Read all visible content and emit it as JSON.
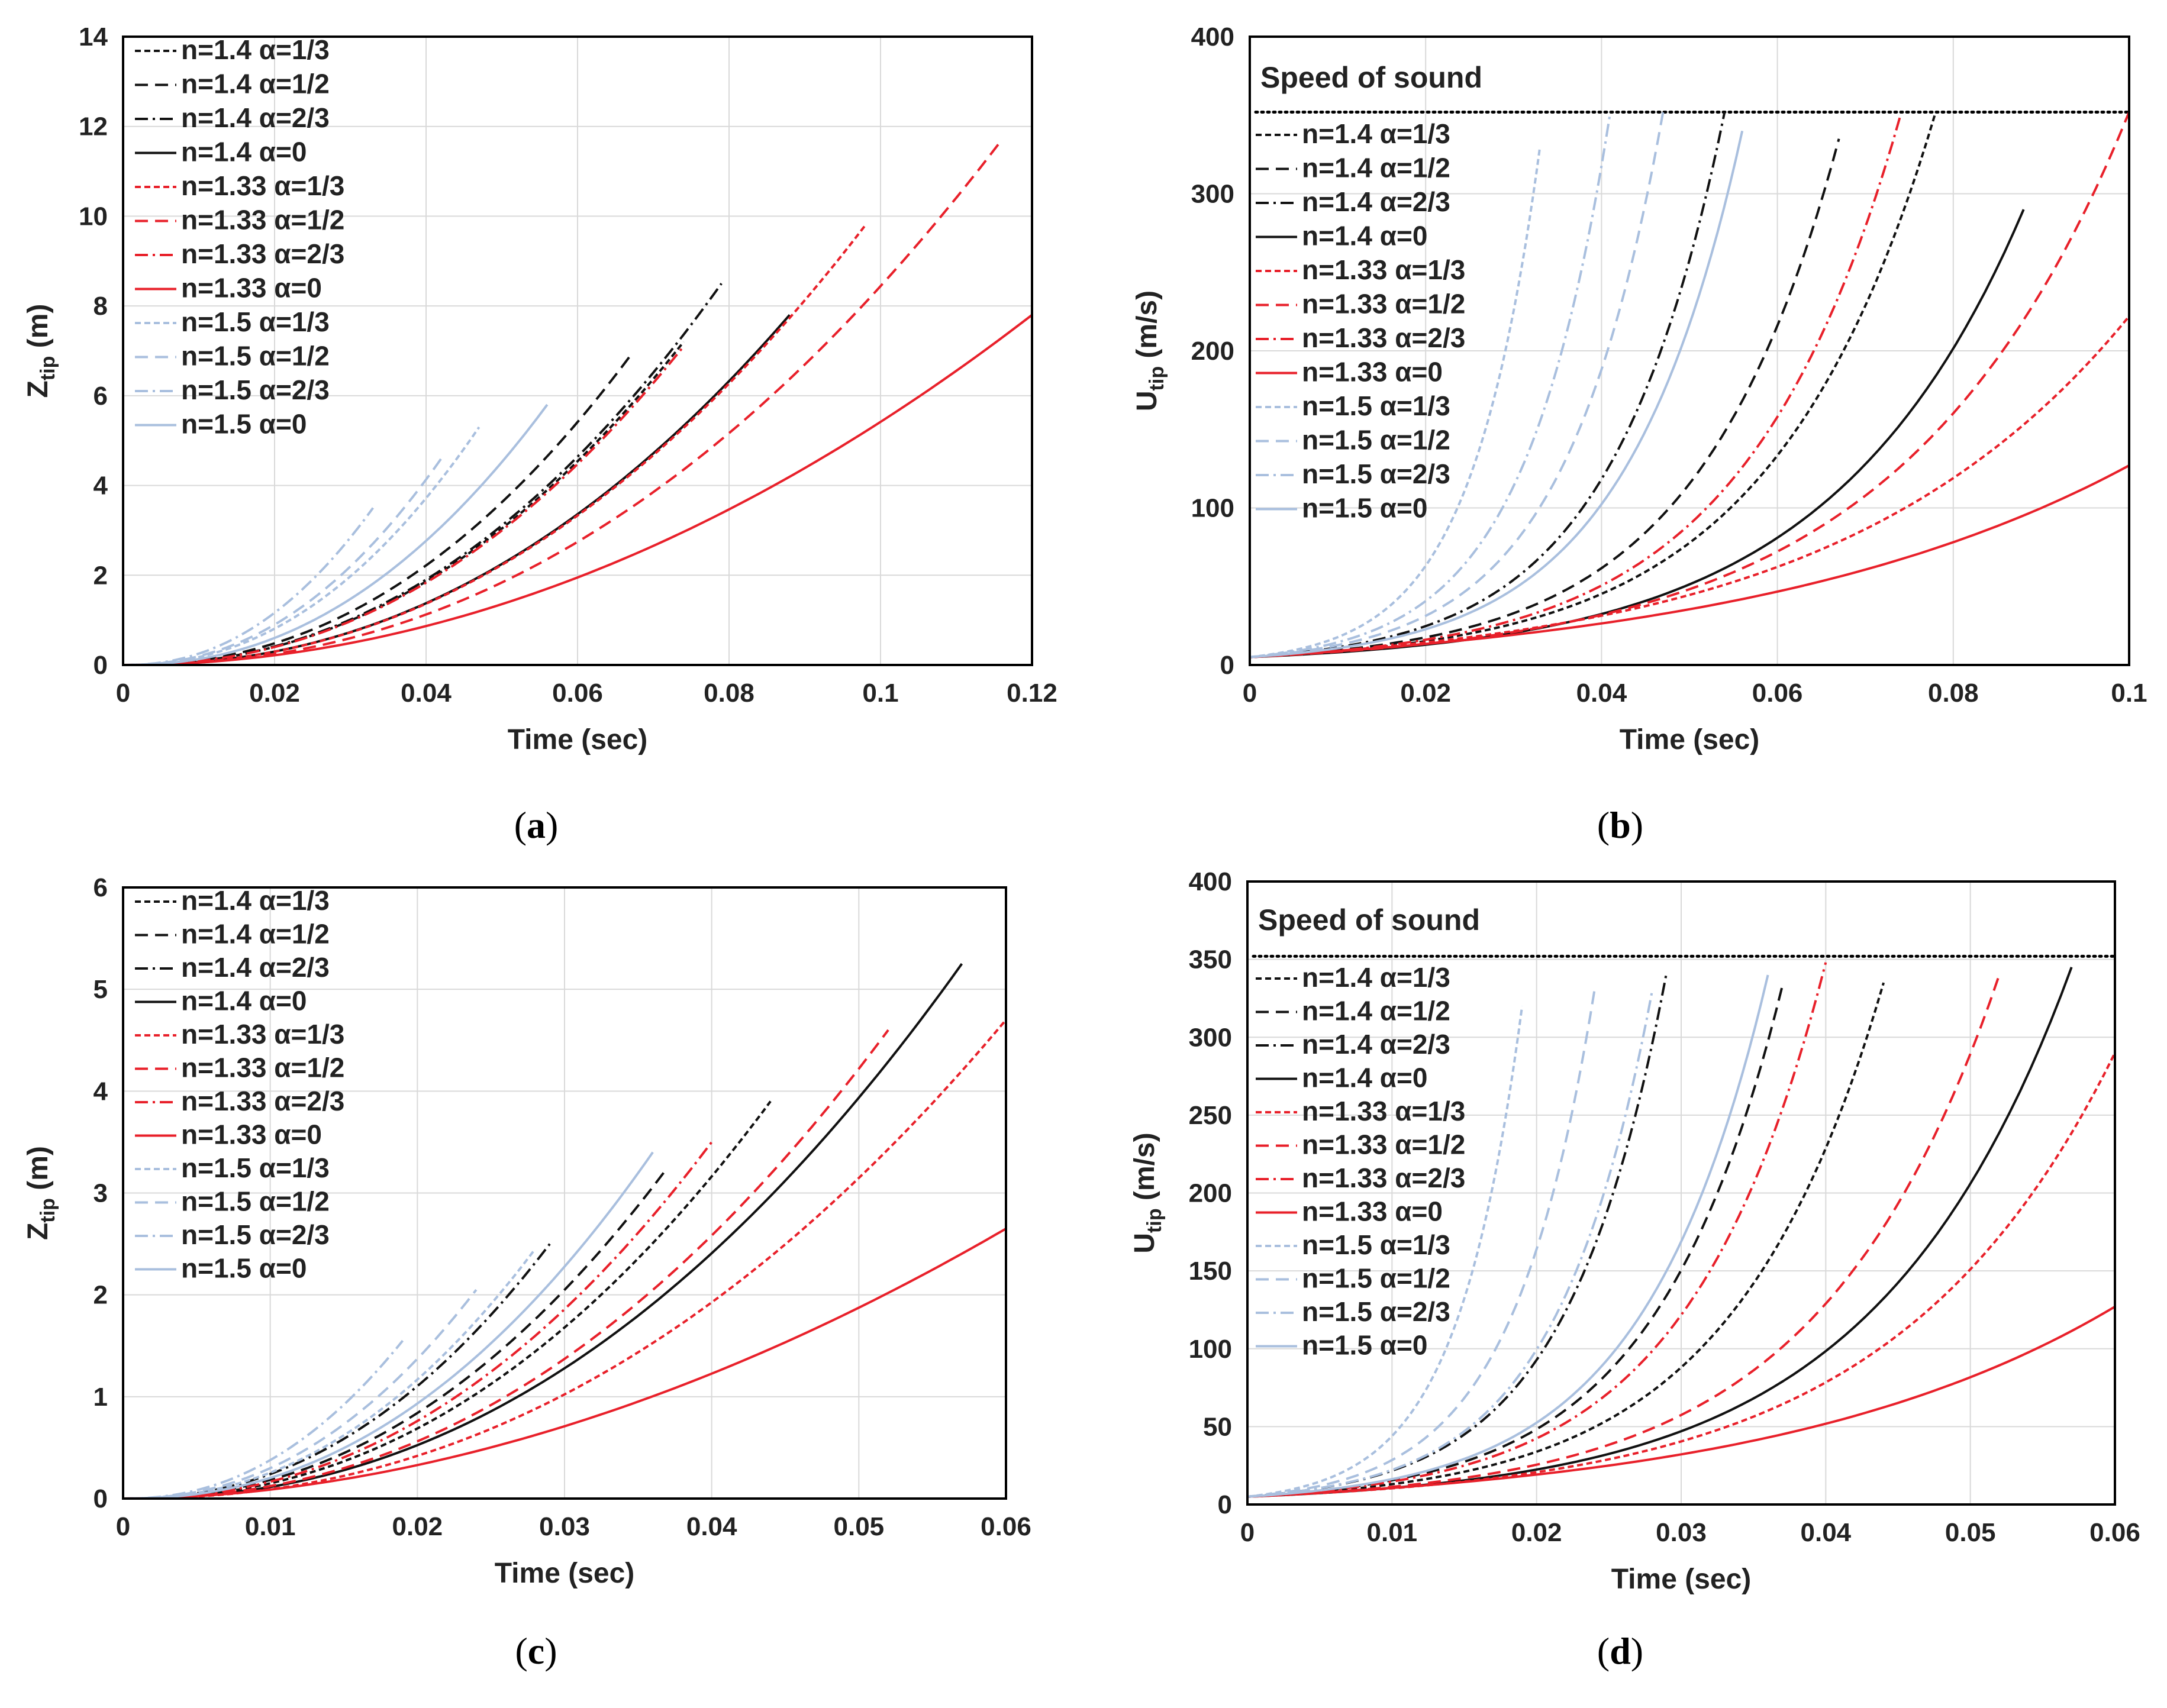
{
  "palette": {
    "black": "#111111",
    "red": "#e8202a",
    "blue": "#a9bfde",
    "grid": "#d9d9d9",
    "frame": "#000000"
  },
  "chart_data": [
    {
      "id": "a",
      "panel_label": {
        "open": "(",
        "letter": "a",
        "close": ")"
      },
      "type": "line",
      "xlabel": "Time (sec)",
      "ylabel": {
        "main": "Z",
        "sub": "tip",
        "unit": " (m)"
      },
      "xlim": [
        0,
        0.12
      ],
      "ylim": [
        0,
        14
      ],
      "xticks": [
        0,
        0.02,
        0.04,
        0.06,
        0.08,
        0.1,
        0.12
      ],
      "xtick_labels": [
        "0",
        "0.02",
        "0.04",
        "0.06",
        "0.08",
        "0.1",
        "0.12"
      ],
      "yticks": [
        0,
        2,
        4,
        6,
        8,
        10,
        12,
        14
      ],
      "ytick_labels": [
        "0",
        "2",
        "4",
        "6",
        "8",
        "10",
        "12",
        "14"
      ],
      "legend_placement": "top-left",
      "series": [
        {
          "name": "n=1.4 α=1/3",
          "color": "black",
          "dash": "short",
          "t_end": 0.074,
          "y_end": 7.2,
          "p": 2.2
        },
        {
          "name": "n=1.4 α=1/2",
          "color": "black",
          "dash": "long",
          "t_end": 0.067,
          "y_end": 6.9,
          "p": 2.2
        },
        {
          "name": "n=1.4 α=2/3",
          "color": "black",
          "dash": "dashdot",
          "t_end": 0.079,
          "y_end": 8.5,
          "p": 2.2
        },
        {
          "name": "n=1.4 α=0",
          "color": "black",
          "dash": "solid",
          "t_end": 0.088,
          "y_end": 7.8,
          "p": 2.2
        },
        {
          "name": "n=1.33 α=1/3",
          "color": "red",
          "dash": "short",
          "t_end": 0.098,
          "y_end": 9.8,
          "p": 2.2
        },
        {
          "name": "n=1.33 α=1/2",
          "color": "red",
          "dash": "long",
          "t_end": 0.116,
          "y_end": 11.7,
          "p": 2.2
        },
        {
          "name": "n=1.33 α=2/3",
          "color": "red",
          "dash": "dashdot",
          "t_end": 0.074,
          "y_end": 7.1,
          "p": 2.2
        },
        {
          "name": "n=1.33 α=0",
          "color": "red",
          "dash": "solid",
          "t_end": 0.12,
          "y_end": 7.8,
          "p": 2.0
        },
        {
          "name": "n=1.5 α=1/3",
          "color": "blue",
          "dash": "short",
          "t_end": 0.047,
          "y_end": 5.3,
          "p": 2.2
        },
        {
          "name": "n=1.5 α=1/2",
          "color": "blue",
          "dash": "long",
          "t_end": 0.042,
          "y_end": 4.6,
          "p": 2.2
        },
        {
          "name": "n=1.5 α=2/3",
          "color": "blue",
          "dash": "dashdot",
          "t_end": 0.033,
          "y_end": 3.5,
          "p": 2.2
        },
        {
          "name": "n=1.5 α=0",
          "color": "blue",
          "dash": "solid",
          "t_end": 0.056,
          "y_end": 5.8,
          "p": 2.2
        }
      ]
    },
    {
      "id": "b",
      "panel_label": {
        "open": "(",
        "letter": "b",
        "close": ")"
      },
      "type": "line",
      "xlabel": "Time (sec)",
      "ylabel": {
        "main": "U",
        "sub": "tip",
        "unit": " (m/s)"
      },
      "xlim": [
        0,
        0.1
      ],
      "ylim": [
        0,
        400
      ],
      "xticks": [
        0,
        0.02,
        0.04,
        0.06,
        0.08,
        0.1
      ],
      "xtick_labels": [
        "0",
        "0.02",
        "0.04",
        "0.06",
        "0.08",
        "0.1"
      ],
      "yticks": [
        0,
        100,
        200,
        300,
        400
      ],
      "ytick_labels": [
        "0",
        "100",
        "200",
        "300",
        "400"
      ],
      "legend_placement": "top-left",
      "reference_line": {
        "label": "Speed of sound",
        "value": 352
      },
      "series": [
        {
          "name": "n=1.4 α=1/3",
          "color": "black",
          "dash": "short",
          "t_end": 0.078,
          "y_end": 352,
          "y0": 5,
          "k": 4.2
        },
        {
          "name": "n=1.4 α=1/2",
          "color": "black",
          "dash": "long",
          "t_end": 0.067,
          "y_end": 335,
          "y0": 5,
          "k": 4.2
        },
        {
          "name": "n=1.4 α=2/3",
          "color": "black",
          "dash": "dashdot",
          "t_end": 0.054,
          "y_end": 352,
          "y0": 5,
          "k": 4.2
        },
        {
          "name": "n=1.4 α=0",
          "color": "black",
          "dash": "solid",
          "t_end": 0.088,
          "y_end": 290,
          "y0": 5,
          "k": 4.0
        },
        {
          "name": "n=1.33 α=1/3",
          "color": "red",
          "dash": "short",
          "t_end": 0.1,
          "y_end": 222,
          "y0": 5,
          "k": 3.0
        },
        {
          "name": "n=1.33 α=1/2",
          "color": "red",
          "dash": "long",
          "t_end": 0.1,
          "y_end": 352,
          "y0": 5,
          "k": 3.9
        },
        {
          "name": "n=1.33 α=2/3",
          "color": "red",
          "dash": "dashdot",
          "t_end": 0.074,
          "y_end": 350,
          "y0": 5,
          "k": 4.2
        },
        {
          "name": "n=1.33 α=0",
          "color": "red",
          "dash": "solid",
          "t_end": 0.1,
          "y_end": 127,
          "y0": 5,
          "k": 2.2
        },
        {
          "name": "n=1.5 α=1/3",
          "color": "blue",
          "dash": "short",
          "t_end": 0.033,
          "y_end": 330,
          "y0": 5,
          "k": 4.2
        },
        {
          "name": "n=1.5 α=1/2",
          "color": "blue",
          "dash": "long",
          "t_end": 0.047,
          "y_end": 352,
          "y0": 5,
          "k": 4.2
        },
        {
          "name": "n=1.5 α=2/3",
          "color": "blue",
          "dash": "dashdot",
          "t_end": 0.041,
          "y_end": 352,
          "y0": 5,
          "k": 4.2
        },
        {
          "name": "n=1.5 α=0",
          "color": "blue",
          "dash": "solid",
          "t_end": 0.056,
          "y_end": 340,
          "y0": 5,
          "k": 4.2
        }
      ]
    },
    {
      "id": "c",
      "panel_label": {
        "open": "(",
        "letter": "c",
        "close": ")"
      },
      "type": "line",
      "xlabel": "Time (sec)",
      "ylabel": {
        "main": "Z",
        "sub": "tip",
        "unit": " (m)"
      },
      "xlim": [
        0,
        0.06
      ],
      "ylim": [
        0,
        6
      ],
      "xticks": [
        0,
        0.01,
        0.02,
        0.03,
        0.04,
        0.05,
        0.06
      ],
      "xtick_labels": [
        "0",
        "0.01",
        "0.02",
        "0.03",
        "0.04",
        "0.05",
        "0.06"
      ],
      "yticks": [
        0,
        1,
        2,
        3,
        4,
        5,
        6
      ],
      "ytick_labels": [
        "0",
        "1",
        "2",
        "3",
        "4",
        "5",
        "6"
      ],
      "legend_placement": "top-left",
      "series": [
        {
          "name": "n=1.4 α=1/3",
          "color": "black",
          "dash": "short",
          "t_end": 0.044,
          "y_end": 3.9,
          "p": 2.2
        },
        {
          "name": "n=1.4 α=1/2",
          "color": "black",
          "dash": "long",
          "t_end": 0.037,
          "y_end": 3.25,
          "p": 2.2
        },
        {
          "name": "n=1.4 α=2/3",
          "color": "black",
          "dash": "dashdot",
          "t_end": 0.029,
          "y_end": 2.5,
          "p": 2.2
        },
        {
          "name": "n=1.4 α=0",
          "color": "black",
          "dash": "solid",
          "t_end": 0.057,
          "y_end": 5.25,
          "p": 2.2
        },
        {
          "name": "n=1.33 α=1/3",
          "color": "red",
          "dash": "short",
          "t_end": 0.06,
          "y_end": 4.7,
          "p": 2.2
        },
        {
          "name": "n=1.33 α=1/2",
          "color": "red",
          "dash": "long",
          "t_end": 0.052,
          "y_end": 4.6,
          "p": 2.2
        },
        {
          "name": "n=1.33 α=2/3",
          "color": "red",
          "dash": "dashdot",
          "t_end": 0.04,
          "y_end": 3.5,
          "p": 2.2
        },
        {
          "name": "n=1.33 α=0",
          "color": "red",
          "dash": "solid",
          "t_end": 0.06,
          "y_end": 2.65,
          "p": 1.9
        },
        {
          "name": "n=1.5 α=1/3",
          "color": "blue",
          "dash": "short",
          "t_end": 0.028,
          "y_end": 2.45,
          "p": 2.2
        },
        {
          "name": "n=1.5 α=1/2",
          "color": "blue",
          "dash": "long",
          "t_end": 0.024,
          "y_end": 2.05,
          "p": 2.2
        },
        {
          "name": "n=1.5 α=2/3",
          "color": "blue",
          "dash": "dashdot",
          "t_end": 0.019,
          "y_end": 1.55,
          "p": 2.2
        },
        {
          "name": "n=1.5 α=0",
          "color": "blue",
          "dash": "solid",
          "t_end": 0.036,
          "y_end": 3.4,
          "p": 2.2
        }
      ]
    },
    {
      "id": "d",
      "panel_label": {
        "open": "(",
        "letter": "d",
        "close": ")"
      },
      "type": "line",
      "xlabel": "Time (sec)",
      "ylabel": {
        "main": "U",
        "sub": "tip",
        "unit": " (m/s)"
      },
      "xlim": [
        0,
        0.06
      ],
      "ylim": [
        0,
        400
      ],
      "xticks": [
        0,
        0.01,
        0.02,
        0.03,
        0.04,
        0.05,
        0.06
      ],
      "xtick_labels": [
        "0",
        "0.01",
        "0.02",
        "0.03",
        "0.04",
        "0.05",
        "0.06"
      ],
      "yticks": [
        0,
        50,
        100,
        150,
        200,
        250,
        300,
        350,
        400
      ],
      "ytick_labels": [
        "0",
        "50",
        "100",
        "150",
        "200",
        "250",
        "300",
        "350",
        "400"
      ],
      "legend_placement": "top-left",
      "reference_line": {
        "label": "Speed of sound",
        "value": 352
      },
      "series": [
        {
          "name": "n=1.4 α=1/3",
          "color": "black",
          "dash": "short",
          "t_end": 0.044,
          "y_end": 335,
          "y0": 5,
          "k": 4.2
        },
        {
          "name": "n=1.4 α=1/2",
          "color": "black",
          "dash": "long",
          "t_end": 0.037,
          "y_end": 333,
          "y0": 5,
          "k": 4.2
        },
        {
          "name": "n=1.4 α=2/3",
          "color": "black",
          "dash": "dashdot",
          "t_end": 0.029,
          "y_end": 342,
          "y0": 5,
          "k": 4.2
        },
        {
          "name": "n=1.4 α=0",
          "color": "black",
          "dash": "solid",
          "t_end": 0.057,
          "y_end": 345,
          "y0": 5,
          "k": 4.2
        },
        {
          "name": "n=1.33 α=1/3",
          "color": "red",
          "dash": "short",
          "t_end": 0.06,
          "y_end": 290,
          "y0": 5,
          "k": 3.9
        },
        {
          "name": "n=1.33 α=1/2",
          "color": "red",
          "dash": "long",
          "t_end": 0.052,
          "y_end": 340,
          "y0": 5,
          "k": 4.2
        },
        {
          "name": "n=1.33 α=2/3",
          "color": "red",
          "dash": "dashdot",
          "t_end": 0.04,
          "y_end": 348,
          "y0": 5,
          "k": 4.2
        },
        {
          "name": "n=1.33 α=0",
          "color": "red",
          "dash": "solid",
          "t_end": 0.06,
          "y_end": 127,
          "y0": 5,
          "k": 2.5
        },
        {
          "name": "n=1.5 α=1/3",
          "color": "blue",
          "dash": "short",
          "t_end": 0.019,
          "y_end": 320,
          "y0": 5,
          "k": 4.2
        },
        {
          "name": "n=1.5 α=1/2",
          "color": "blue",
          "dash": "long",
          "t_end": 0.024,
          "y_end": 330,
          "y0": 5,
          "k": 4.2
        },
        {
          "name": "n=1.5 α=2/3",
          "color": "blue",
          "dash": "dashdot",
          "t_end": 0.028,
          "y_end": 330,
          "y0": 5,
          "k": 4.2
        },
        {
          "name": "n=1.5 α=0",
          "color": "blue",
          "dash": "solid",
          "t_end": 0.036,
          "y_end": 340,
          "y0": 5,
          "k": 4.2
        }
      ]
    }
  ]
}
